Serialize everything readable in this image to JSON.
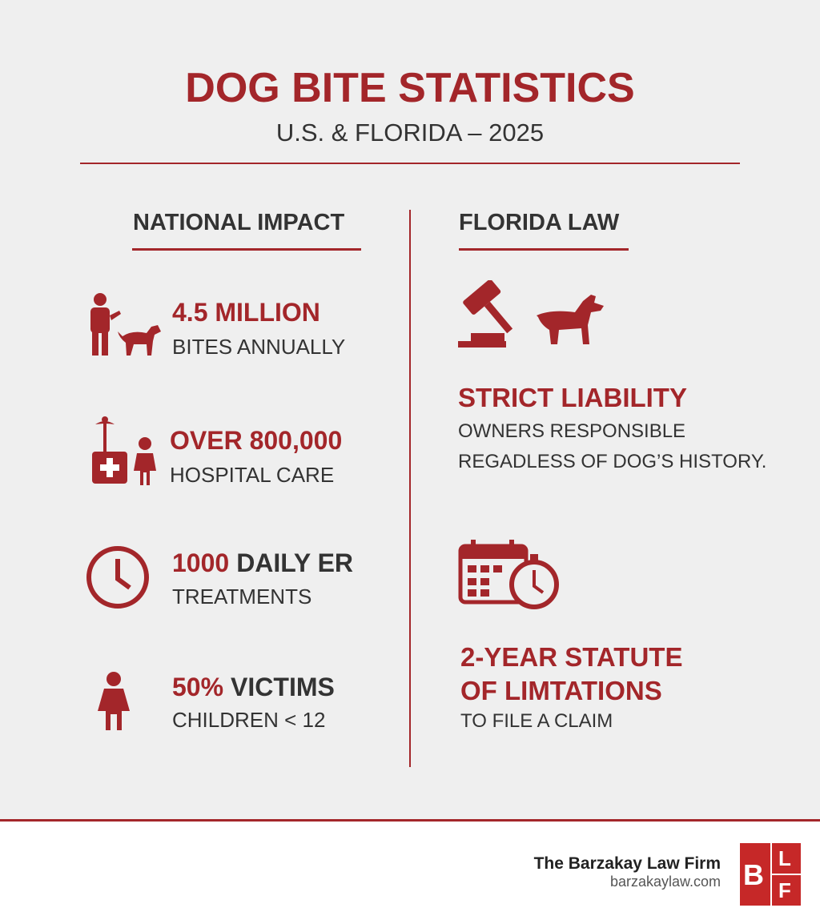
{
  "header": {
    "title": "DOG BITE STATISTICS",
    "subtitle": "U.S. & FLORIDA – 2025"
  },
  "national": {
    "heading": "NATIONAL IMPACT",
    "stats": [
      {
        "lead": "4.5 MILLION",
        "detail": "BITES ANNUALLY"
      },
      {
        "lead": "OVER 800,000",
        "detail": "HOSPITAL CARE"
      },
      {
        "lead": "1000",
        "lead_rest": "DAILY ER",
        "detail": "TREATMENTS"
      },
      {
        "lead": "50%",
        "lead_rest": "VICTIMS",
        "detail": "CHILDREN < 12"
      }
    ]
  },
  "florida": {
    "heading": "FLORIDA LAW",
    "items": [
      {
        "title_lines": [
          "STRICT LIABILITY"
        ],
        "detail_lines": [
          "OWNERS RESPONSIBLE",
          "REGADLESS OF DOG’S HISTORY."
        ]
      },
      {
        "title_lines": [
          "2-YEAR STATUTE",
          "OF LIMTATIONS"
        ],
        "detail_lines": [
          "TO FILE A CLAIM"
        ]
      }
    ]
  },
  "footer": {
    "firm": "The Barzakay Law Firm",
    "website": "barzakaylaw.com",
    "logo_letters": [
      "B",
      "L",
      "F"
    ]
  }
}
